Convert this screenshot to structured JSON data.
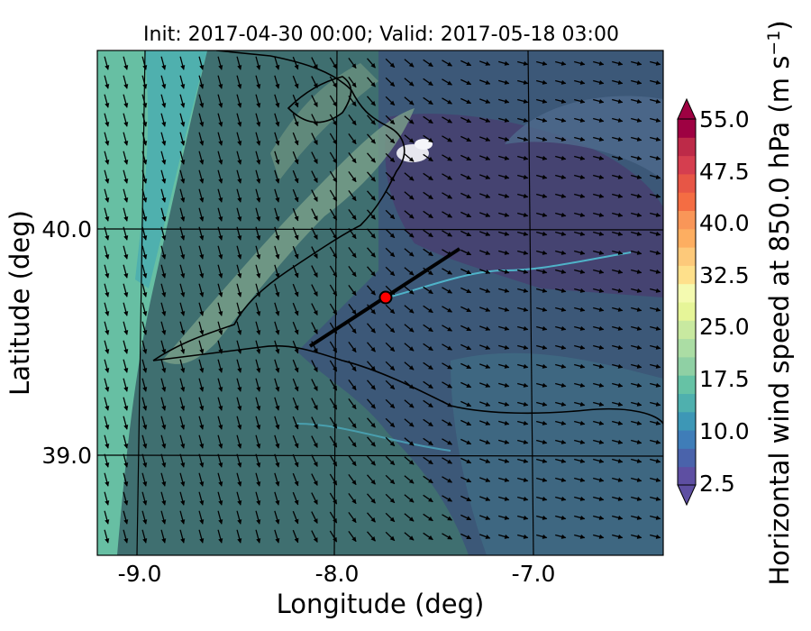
{
  "title": "Init: 2017-04-30 00:00; Valid: 2017-05-18 03:00",
  "axes": {
    "xlabel": "Longitude (deg)",
    "ylabel": "Latitude (deg)",
    "xticks": [
      "-9.0",
      "-8.0",
      "-7.0"
    ],
    "yticks": [
      "40.0",
      "39.0"
    ],
    "xlim": [
      -9.25,
      -6.35
    ],
    "ylim": [
      38.55,
      40.8
    ]
  },
  "colorbar": {
    "label": "Horizontal wind speed at 850.0 hPa (m s",
    "label_sup": "−1",
    "label_end": ")",
    "ticks": [
      "55.0",
      "47.5",
      "40.0",
      "32.5",
      "25.0",
      "17.5",
      "10.0",
      "2.5"
    ],
    "vmin": 2.5,
    "vmax": 55.0,
    "levels": 21,
    "extend": "both",
    "colors": [
      "#5e4fa2",
      "#4a63ab",
      "#3f7db8",
      "#3d97b6",
      "#4fb0ae",
      "#66c2a5",
      "#8fd0a4",
      "#abdda4",
      "#c8e9a0",
      "#e6f598",
      "#f4fab0",
      "#fee08b",
      "#fdc97a",
      "#fdae61",
      "#f99658",
      "#f46d43",
      "#e75646",
      "#d53e4f",
      "#bd2a48",
      "#9e0142"
    ]
  },
  "chart_data": {
    "type": "map",
    "marker": {
      "lon": -7.75,
      "lat": 39.7,
      "color": "#ff0000"
    },
    "cross_section": {
      "start": [
        -8.1,
        39.47
      ],
      "end": [
        -7.35,
        39.93
      ]
    },
    "gridlines": {
      "lon": [
        -9.0,
        -8.0,
        -7.0
      ],
      "lat": [
        40.0,
        39.0
      ]
    },
    "wind_barbs": "arrows pointing mostly south-southeast in the west, east-southeast in the east"
  }
}
